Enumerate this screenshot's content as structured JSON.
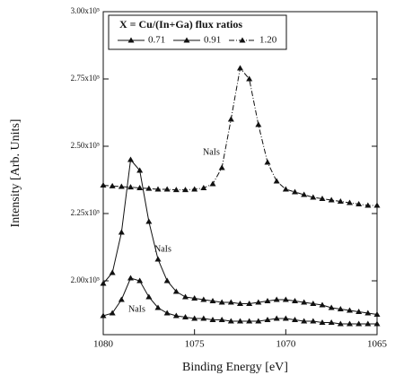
{
  "chart_data": {
    "type": "line",
    "xlabel": "Binding Energy [eV]",
    "ylabel": "Intensity [Arb. Units]",
    "legend_title": "X = Cu/(In+Ga) flux ratios",
    "legend": "upper left",
    "annotations": [
      "NaIs",
      "NaIs",
      "NaIs"
    ],
    "x": [
      1080,
      1079.5,
      1079,
      1078.5,
      1078,
      1077.5,
      1077,
      1076.5,
      1076,
      1075.5,
      1075,
      1074.5,
      1074,
      1073.5,
      1073,
      1072.5,
      1072,
      1071.5,
      1071,
      1070.5,
      1070,
      1069.5,
      1069,
      1068.5,
      1068,
      1067.5,
      1067,
      1066.5,
      1066,
      1065.5,
      1065
    ],
    "xlim": [
      1080,
      1065
    ],
    "xticks": [
      1080,
      1075,
      1070,
      1065
    ],
    "ylim": [
      180000,
      300000
    ],
    "yticks": [
      {
        "value": 200000,
        "label": "2.00x10⁵"
      },
      {
        "value": 225000,
        "label": "2.25x10⁵"
      },
      {
        "value": 250000,
        "label": "2.50x10⁵"
      },
      {
        "value": 275000,
        "label": "2.75x10⁵"
      },
      {
        "value": 300000,
        "label": "3.00x10⁵"
      }
    ],
    "series": [
      {
        "name": "0.71",
        "color": "#111111",
        "dash": "solid",
        "values": [
          187000,
          188000,
          193000,
          201000,
          200000,
          194000,
          190000,
          188000,
          187000,
          186500,
          186000,
          186000,
          185500,
          185500,
          185000,
          185000,
          185000,
          185000,
          185500,
          186000,
          186000,
          185500,
          185000,
          185000,
          184500,
          184500,
          184000,
          184000,
          184000,
          184000,
          184000
        ]
      },
      {
        "name": "0.91",
        "color": "#111111",
        "dash": "solid",
        "values": [
          199000,
          203000,
          218000,
          245000,
          241000,
          222000,
          208000,
          200000,
          196000,
          194000,
          193500,
          193000,
          192500,
          192000,
          192000,
          191500,
          191500,
          192000,
          192500,
          193000,
          193000,
          192500,
          192000,
          191500,
          191000,
          190000,
          189500,
          189000,
          188500,
          188000,
          187500
        ]
      },
      {
        "name": "1.20",
        "color": "#111111",
        "dash": "dashdot",
        "values": [
          235500,
          235200,
          235000,
          234800,
          234500,
          234300,
          234000,
          234000,
          233800,
          233800,
          234000,
          234500,
          236000,
          242000,
          260000,
          279000,
          275000,
          258000,
          244000,
          237000,
          234000,
          233000,
          232000,
          231000,
          230500,
          230000,
          229500,
          229000,
          228500,
          228000,
          228000
        ]
      }
    ]
  }
}
